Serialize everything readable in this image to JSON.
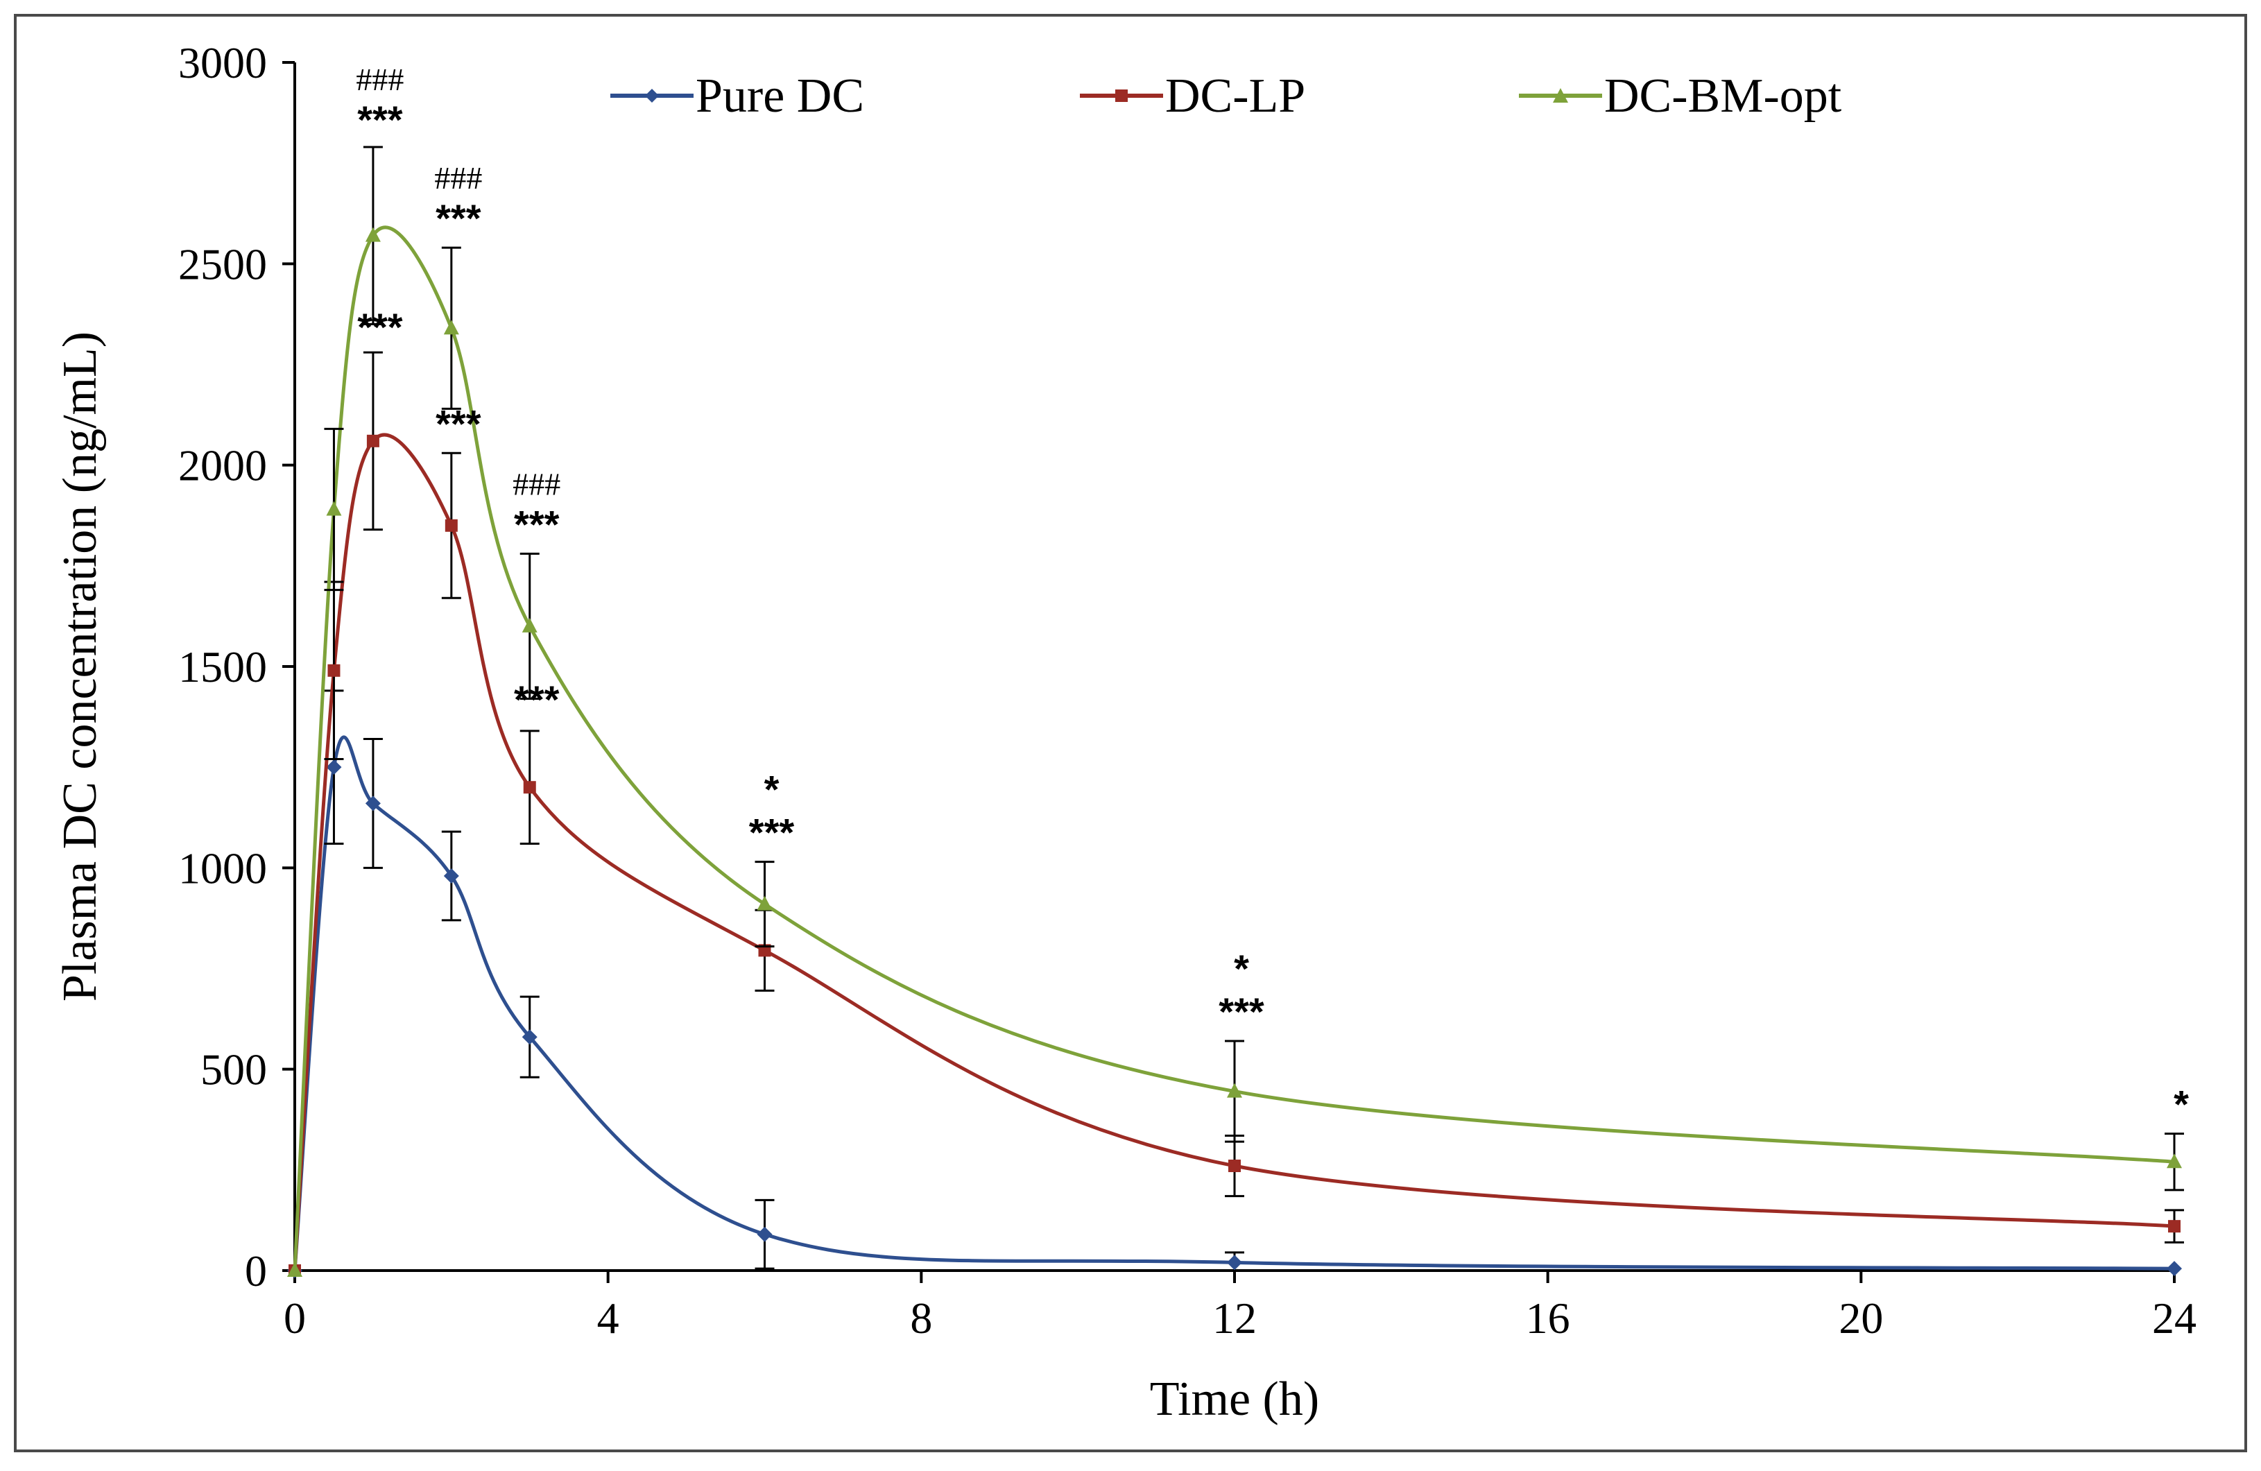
{
  "chart_data": {
    "type": "line",
    "title": "",
    "xlabel": "Time (h)",
    "ylabel": "Plasma DC concentration (ng/mL)",
    "xlim": [
      0,
      24
    ],
    "ylim": [
      0,
      3000
    ],
    "x_ticks": [
      0,
      4,
      8,
      12,
      16,
      20,
      24
    ],
    "y_ticks": [
      0,
      500,
      1000,
      1500,
      2000,
      2500,
      3000
    ],
    "grid": false,
    "legend_position": "top",
    "series": [
      {
        "name": "Pure DC",
        "color": "#2e4f8f",
        "marker": "diamond",
        "x": [
          0,
          0.5,
          1,
          2,
          3,
          6,
          12,
          24
        ],
        "y": [
          0,
          1250,
          1160,
          980,
          580,
          90,
          20,
          5
        ],
        "err": [
          0,
          190,
          160,
          110,
          100,
          85,
          25,
          0
        ]
      },
      {
        "name": "DC-LP",
        "color": "#9c2b24",
        "marker": "square",
        "x": [
          0,
          0.5,
          1,
          2,
          3,
          6,
          12,
          24
        ],
        "y": [
          0,
          1490,
          2060,
          1850,
          1200,
          795,
          260,
          110
        ],
        "err": [
          0,
          220,
          220,
          180,
          140,
          100,
          75,
          40
        ]
      },
      {
        "name": "DC-BM-opt",
        "color": "#7ea23a",
        "marker": "triangle",
        "x": [
          0,
          0.5,
          1,
          2,
          3,
          6,
          12,
          24
        ],
        "y": [
          0,
          1890,
          2570,
          2340,
          1600,
          910,
          445,
          270
        ],
        "err": [
          0,
          200,
          220,
          200,
          180,
          105,
          125,
          70
        ]
      }
    ],
    "annotations": [
      {
        "x": 1,
        "lines": [
          "###",
          "***"
        ],
        "anchor_y": 2790
      },
      {
        "x": 2,
        "lines": [
          "###",
          "***"
        ],
        "anchor_y": 2545
      },
      {
        "x": 1,
        "lines": [
          "***"
        ],
        "anchor_y": 2275
      },
      {
        "x": 2,
        "lines": [
          "***"
        ],
        "anchor_y": 2035
      },
      {
        "x": 3,
        "lines": [
          "###",
          "***"
        ],
        "anchor_y": 1785
      },
      {
        "x": 3,
        "lines": [
          "***"
        ],
        "anchor_y": 1350
      },
      {
        "x": 6,
        "lines": [
          "*",
          "***"
        ],
        "anchor_y": 1020
      },
      {
        "x": 12,
        "lines": [
          "*",
          "***"
        ],
        "anchor_y": 575
      },
      {
        "x": 24,
        "lines": [
          "*"
        ],
        "anchor_y": 345
      }
    ]
  }
}
